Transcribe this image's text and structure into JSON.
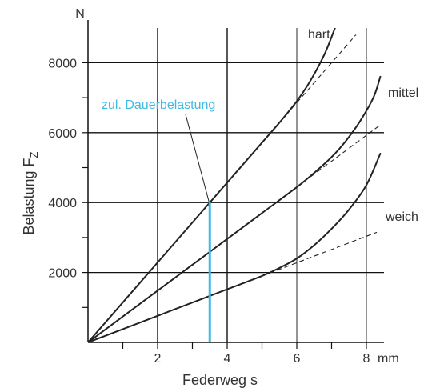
{
  "chart_data": {
    "type": "line",
    "xlabel": "Federweg s",
    "ylabel_main": "Belastung F",
    "ylabel_sub": "Z",
    "y_unit": "N",
    "x_unit": "mm",
    "xlim": [
      0,
      8.4
    ],
    "ylim": [
      0,
      9000
    ],
    "x_ticks": [
      1,
      2,
      3,
      4,
      5,
      6,
      7,
      8
    ],
    "x_tick_labels": [
      "",
      "2",
      "",
      "4",
      "",
      "6",
      "",
      "8"
    ],
    "y_ticks": [
      1000,
      2000,
      3000,
      4000,
      5000,
      6000,
      7000,
      8000
    ],
    "y_tick_labels": [
      "",
      "2000",
      "",
      "4000",
      "",
      "6000",
      "",
      "8000"
    ],
    "grid_x": [
      2,
      4,
      6,
      8
    ],
    "grid_y": [
      2000,
      4000,
      6000,
      8000
    ],
    "grid_x_thick": [
      2,
      4
    ],
    "series": [
      {
        "name": "hart",
        "x": [
          0,
          1,
          2,
          3,
          4,
          5,
          5.5,
          6,
          6.4,
          6.8,
          7.1
        ],
        "y": [
          0,
          1143,
          2286,
          3429,
          4571,
          5714,
          6286,
          6900,
          7500,
          8250,
          9000
        ],
        "linear_x": [
          5.7,
          7.7
        ],
        "linear_y": [
          6514,
          8800
        ]
      },
      {
        "name": "mittel",
        "x": [
          0,
          1,
          2,
          3,
          4,
          5,
          6,
          6.5,
          7,
          7.4,
          7.8,
          8.2,
          8.4
        ],
        "y": [
          0,
          740,
          1480,
          2220,
          2960,
          3700,
          4440,
          4850,
          5300,
          5750,
          6300,
          7000,
          7600
        ],
        "linear_x": [
          6.4,
          8.4
        ],
        "linear_y": [
          4740,
          6220
        ]
      },
      {
        "name": "weich",
        "x": [
          0,
          1,
          2,
          3,
          4,
          5,
          5.5,
          6,
          6.5,
          7,
          7.5,
          8,
          8.4
        ],
        "y": [
          0,
          380,
          760,
          1140,
          1520,
          1900,
          2130,
          2400,
          2780,
          3250,
          3800,
          4500,
          5400
        ],
        "linear_x": [
          5,
          8.3
        ],
        "linear_y": [
          1900,
          3150
        ]
      }
    ],
    "annotation": {
      "text": "zul. Dauerbelastung",
      "x": 3.5,
      "y": 4000,
      "color": "#3fb9e6"
    },
    "curve_color": "#222222",
    "grid_color": "#111111"
  }
}
